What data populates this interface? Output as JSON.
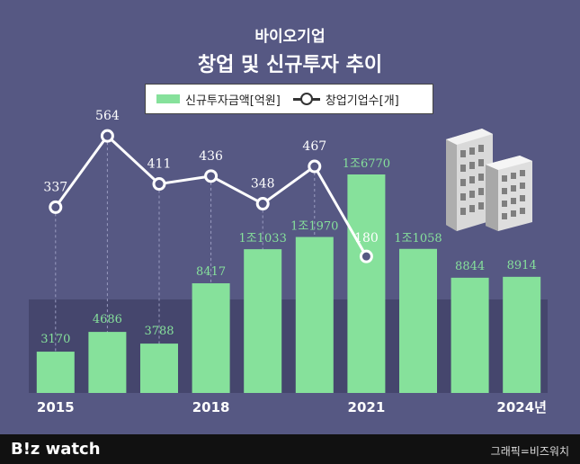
{
  "title": "바이오기업",
  "subtitle": "창업 및 신규투자 추이",
  "legend": {
    "bar_label": "신규투자금액[억원]",
    "line_label": "창업기업수[개]"
  },
  "footer": {
    "logo": "B!z watch",
    "credit": "그래픽=비즈워치"
  },
  "colors": {
    "background": "#565883",
    "bar": "#86e19b",
    "line": "#ffffff",
    "bar_label": "#86e19b",
    "line_label": "#ffffff",
    "panel": "#45466d"
  },
  "chart_data": {
    "type": "bar",
    "categories": [
      "2015",
      "2016",
      "2017",
      "2018",
      "2019",
      "2020",
      "2021",
      "2022",
      "2023",
      "2024"
    ],
    "x_tick_labels": [
      "2015",
      "",
      "",
      "2018",
      "",
      "",
      "2021",
      "",
      "",
      "2024년"
    ],
    "series": [
      {
        "name": "신규투자금액[억원]",
        "type": "bar",
        "values": [
          3170,
          4686,
          3788,
          8417,
          11033,
          11970,
          16770,
          11058,
          8844,
          8914
        ],
        "labels": [
          "3170",
          "4686",
          "3788",
          "8417",
          "1조1033",
          "1조1970",
          "1조6770",
          "1조1058",
          "8844",
          "8914"
        ]
      },
      {
        "name": "창업기업수[개]",
        "type": "line",
        "values": [
          337,
          564,
          411,
          436,
          348,
          467,
          180,
          null,
          null,
          null
        ],
        "labels": [
          "337",
          "564",
          "411",
          "436",
          "348",
          "467",
          "180",
          "",
          "",
          ""
        ]
      }
    ]
  }
}
